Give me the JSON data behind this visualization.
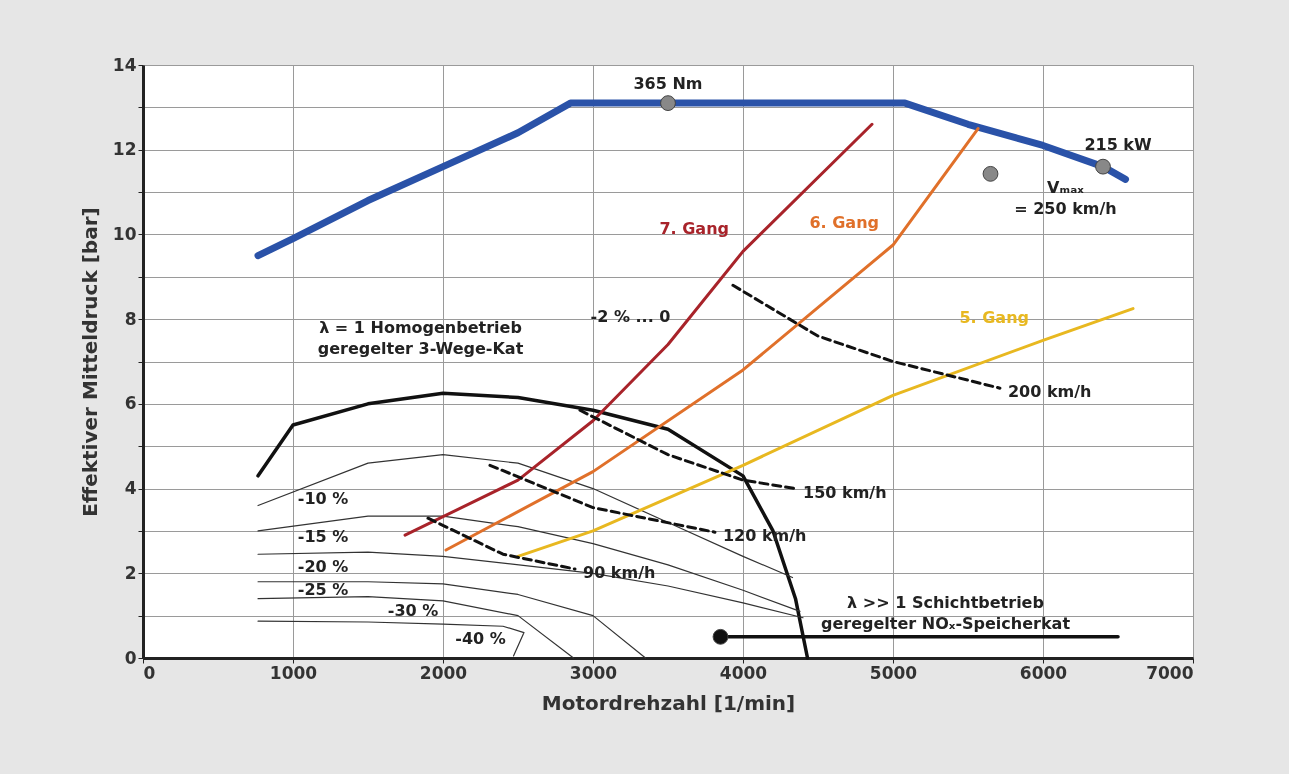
{
  "chart_data": {
    "type": "line",
    "xlabel": "Motordrehzahl [1/min]",
    "ylabel": "Effektiver Mitteldruck [bar]",
    "xlim": [
      0,
      7000
    ],
    "xticks": [
      0,
      1000,
      2000,
      3000,
      4000,
      5000,
      6000,
      7000
    ],
    "ylim": [
      0,
      14
    ],
    "yticks": [
      0,
      {
        "value": 1,
        "label": null
      },
      2,
      {
        "value": 3,
        "label": null
      },
      4,
      {
        "value": 5,
        "label": null
      },
      6,
      {
        "value": 7,
        "label": null
      },
      8,
      {
        "value": 9,
        "label": null
      },
      10,
      {
        "value": 11,
        "label": null
      },
      12,
      {
        "value": 13,
        "label": null
      },
      14
    ],
    "grid": true,
    "legend": false,
    "series": [
      {
        "color": "#2a52a8",
        "x": [
          767,
          1000,
          1500,
          2000,
          2500,
          2850,
          3500,
          4500,
          5080,
          5500,
          6000,
          6400,
          6550
        ],
        "values": [
          9.5,
          9.9,
          10.8,
          11.6,
          12.4,
          13.1,
          13.1,
          13.1,
          13.1,
          12.6,
          12.1,
          11.6,
          11.3
        ]
      },
      {
        "color": "#111111",
        "x": [
          767,
          1000,
          1500,
          2000,
          2500,
          3000,
          3500,
          4000,
          4200,
          4350,
          4430
        ],
        "values": [
          4.3,
          5.5,
          6.0,
          6.25,
          6.15,
          5.85,
          5.4,
          4.3,
          3.0,
          1.4,
          0
        ]
      },
      {
        "color": "#333333",
        "x": [
          767,
          1500,
          2000,
          2500,
          3000,
          3500,
          4000,
          4330
        ],
        "values": [
          3.6,
          4.6,
          4.8,
          4.6,
          4.0,
          3.2,
          2.4,
          1.9
        ]
      },
      {
        "color": "#333333",
        "x": [
          767,
          1500,
          2000,
          2500,
          3000,
          3500,
          4000,
          4380
        ],
        "values": [
          3.0,
          3.35,
          3.35,
          3.1,
          2.7,
          2.2,
          1.6,
          1.1
        ]
      },
      {
        "color": "#333333",
        "x": [
          767,
          1500,
          2000,
          3000,
          3500,
          4000,
          4400
        ],
        "values": [
          2.45,
          2.5,
          2.4,
          2.0,
          1.7,
          1.3,
          0.95
        ]
      },
      {
        "color": "#333333",
        "x": [
          767,
          1500,
          2000,
          2500,
          3000,
          3350
        ],
        "values": [
          1.8,
          1.8,
          1.75,
          1.5,
          1.0,
          0
        ]
      },
      {
        "color": "#333333",
        "x": [
          767,
          1500,
          2000,
          2500,
          2870
        ],
        "values": [
          1.4,
          1.45,
          1.35,
          1.0,
          0
        ]
      },
      {
        "color": "#333333",
        "x": [
          767,
          1500,
          2000,
          2400,
          2540,
          2470
        ],
        "values": [
          0.87,
          0.85,
          0.8,
          0.75,
          0.6,
          0.05
        ]
      },
      {
        "name": "7. Gang",
        "color": "#a8232a",
        "x": [
          1747,
          2500,
          3000,
          3500,
          4000,
          4860
        ],
        "values": [
          2.9,
          4.2,
          5.6,
          7.4,
          9.6,
          12.6
        ]
      },
      {
        "name": "6. Gang",
        "color": "#e0702a",
        "x": [
          2020,
          3000,
          4000,
          5000,
          5567
        ],
        "values": [
          2.55,
          4.4,
          6.8,
          9.75,
          12.5
        ]
      },
      {
        "name": "5. Gang",
        "color": "#e8b820",
        "x": [
          2500,
          3000,
          4000,
          5000,
          6000,
          6600
        ],
        "values": [
          2.4,
          3.0,
          4.55,
          6.2,
          7.5,
          8.25
        ]
      },
      {
        "name": "90 km/h",
        "color": "#111111",
        "line_style": "dashed",
        "x": [
          1900,
          2400,
          2880
        ],
        "values": [
          3.3,
          2.45,
          2.1
        ]
      },
      {
        "name": "120 km/h",
        "color": "#111111",
        "line_style": "dashed",
        "x": [
          2313,
          3000,
          3813
        ],
        "values": [
          4.55,
          3.55,
          2.97
        ]
      },
      {
        "name": "150 km/h",
        "color": "#111111",
        "line_style": "dashed",
        "x": [
          2913,
          3500,
          4000,
          4347
        ],
        "values": [
          5.85,
          4.8,
          4.2,
          4.0
        ]
      },
      {
        "name": "200 km/h",
        "color": "#111111",
        "line_style": "dashed",
        "x": [
          3933,
          4500,
          5000,
          5713
        ],
        "values": [
          8.8,
          7.6,
          7.0,
          6.37
        ]
      },
      {
        "color": "#111111",
        "x": [
          3850,
          6500
        ],
        "values": [
          0.5,
          0.5
        ]
      },
      {
        "type": "scatter",
        "marker": "circle",
        "color": "#888888",
        "x": [
          3500,
          5650,
          6400
        ],
        "values": [
          13.1,
          11.43,
          11.6
        ]
      },
      {
        "type": "scatter",
        "marker": "circle",
        "color": "#111111",
        "x": [
          3850
        ],
        "values": [
          0.5
        ]
      }
    ],
    "annotations": [
      "365 Nm",
      "215 kW",
      "Vₘₐₓ\n= 250 km/h",
      "-2 % ... 0",
      "λ = 1 Homogenbetrieb\ngeregelter 3-Wege-Kat",
      "λ >> 1 Schichtbetrieb\ngeregelter NOₓ-Speicherkat",
      "-10 %",
      "-15 %",
      "-20 %",
      "-25 %",
      "-30 %",
      "-40 %"
    ]
  }
}
